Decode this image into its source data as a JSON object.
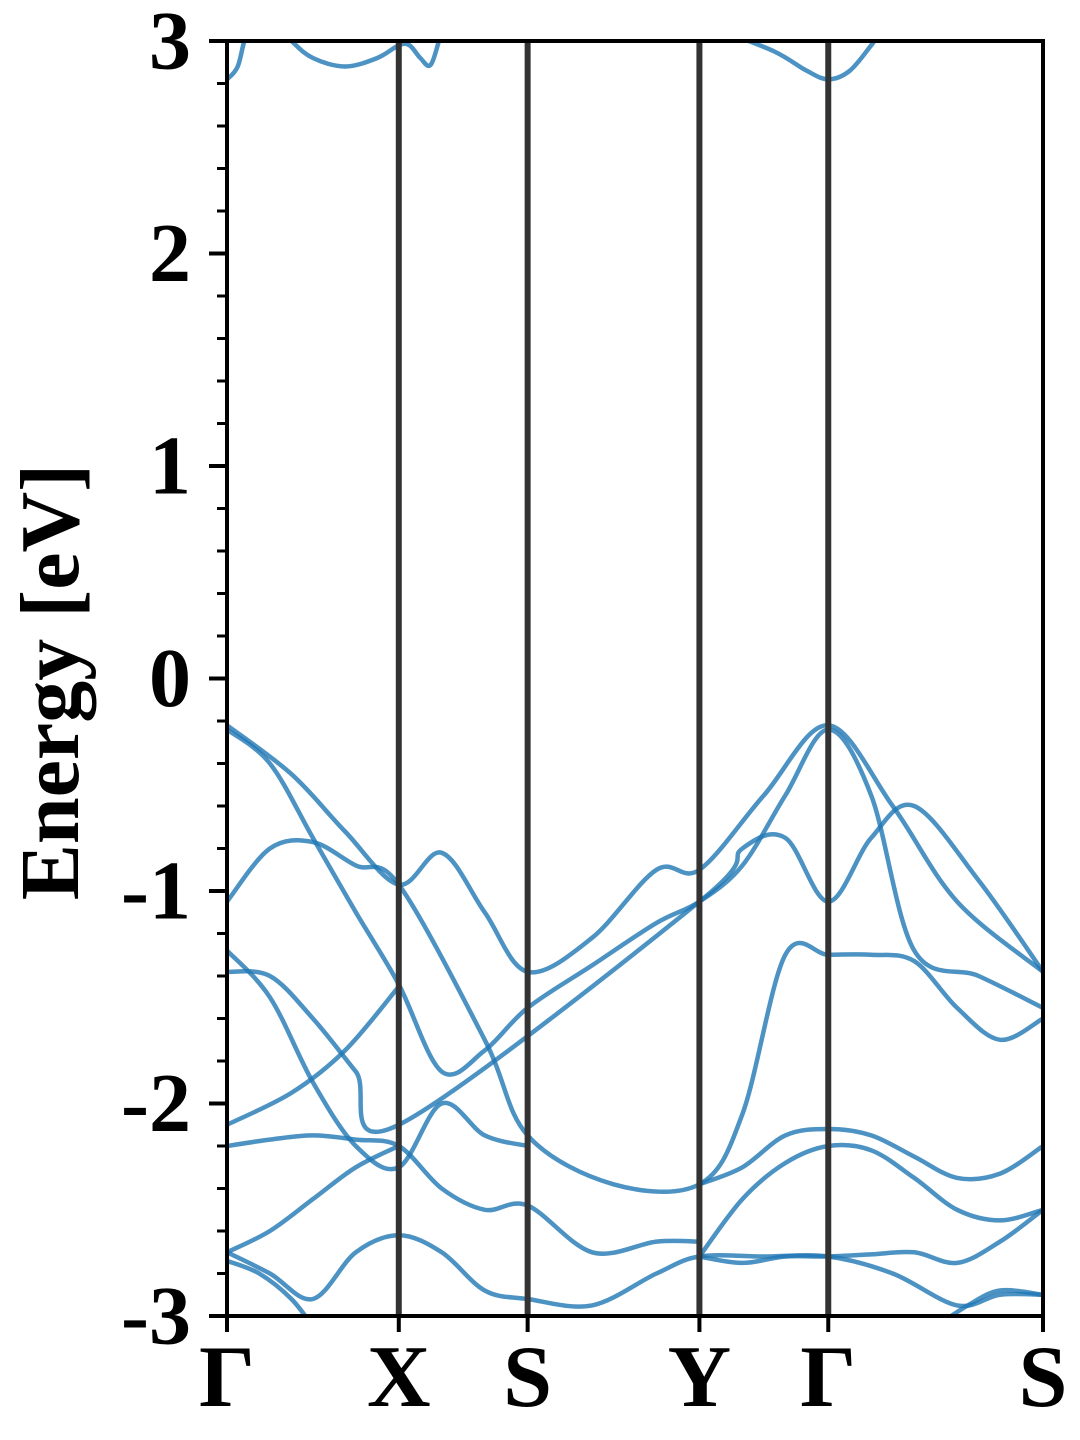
{
  "chart_data": {
    "type": "line",
    "ylabel": "Energy [eV]",
    "xlabel": "",
    "ylim": [
      -3,
      3
    ],
    "y_major_ticks": [
      -3,
      -2,
      -1,
      0,
      1,
      2,
      3
    ],
    "y_tick_labels": [
      "-3",
      "-2",
      "-1",
      "0",
      "1",
      "2",
      "3"
    ],
    "y_minor_step": 0.2,
    "high_symmetry_points": [
      {
        "label": "Γ",
        "x": 0.0
      },
      {
        "label": "X",
        "x": 0.8
      },
      {
        "label": "S",
        "x": 1.4
      },
      {
        "label": "Y",
        "x": 2.2
      },
      {
        "label": "Γ",
        "x": 2.8
      },
      {
        "label": "S",
        "x": 3.8
      }
    ],
    "xlim": [
      0.0,
      3.8
    ],
    "grid": false,
    "colors": {
      "band": "#1f77b4",
      "kline": "#333333",
      "axis": "#000000"
    },
    "series": [
      {
        "x": [
          0,
          0.3,
          0.55,
          0.8,
          1.0,
          1.2,
          1.4,
          1.7,
          2.0,
          2.2,
          2.5,
          2.8,
          3.1,
          3.4,
          3.8
        ],
        "values": [
          -0.22,
          -0.45,
          -0.72,
          -0.97,
          -0.82,
          -1.1,
          -1.38,
          -1.22,
          -0.9,
          -0.9,
          -0.55,
          -0.22,
          -0.6,
          -1.05,
          -1.38
        ]
      },
      {
        "x": [
          0,
          0.2,
          0.4,
          0.6,
          0.8,
          1.0,
          1.2,
          1.4,
          1.7,
          2.0,
          2.2,
          2.4,
          2.6,
          2.8,
          3.0,
          3.2,
          3.5,
          3.8
        ],
        "values": [
          -0.24,
          -0.4,
          -0.75,
          -1.1,
          -1.44,
          -1.85,
          -1.75,
          -1.55,
          -1.35,
          -1.15,
          -1.05,
          -0.88,
          -0.55,
          -0.24,
          -0.55,
          -1.28,
          -1.4,
          -1.55
        ]
      },
      {
        "x": [
          0,
          0.2,
          0.4,
          0.6,
          0.8,
          1.2,
          1.4,
          1.8,
          2.2,
          2.4,
          2.6,
          2.8,
          3.0,
          3.2,
          3.4,
          3.6,
          3.8
        ],
        "values": [
          -1.05,
          -0.8,
          -0.77,
          -0.88,
          -0.97,
          -1.7,
          -2.15,
          -2.38,
          -2.38,
          -2.05,
          -1.3,
          -1.3,
          -1.3,
          -1.33,
          -1.55,
          -1.7,
          -1.6
        ]
      },
      {
        "x": [
          0,
          0.2,
          0.4,
          0.6,
          0.8,
          2.2,
          2.4,
          2.6,
          2.8,
          3.0,
          3.2,
          3.5,
          3.8
        ],
        "values": [
          -1.38,
          -1.4,
          -1.6,
          -1.85,
          -2.1,
          -1.05,
          -0.8,
          -0.75,
          -1.05,
          -0.75,
          -0.6,
          -0.95,
          -1.38
        ]
      },
      {
        "x": [
          0,
          0.2,
          0.4,
          0.6,
          0.8,
          1.0,
          1.2,
          1.4
        ],
        "values": [
          -1.28,
          -1.5,
          -1.9,
          -2.2,
          -2.3,
          -2.0,
          -2.15,
          -2.2
        ]
      },
      {
        "x": [
          0,
          0.3,
          0.55,
          0.8
        ],
        "values": [
          -2.1,
          -1.95,
          -1.75,
          -1.45
        ]
      },
      {
        "x": [
          0,
          0.2,
          0.4,
          0.6,
          0.8,
          1.0,
          1.2,
          1.4,
          1.7,
          2.0,
          2.2
        ],
        "values": [
          -2.2,
          -2.17,
          -2.15,
          -2.17,
          -2.2,
          -2.4,
          -2.5,
          -2.48,
          -2.7,
          -2.65,
          -2.65
        ]
      },
      {
        "x": [
          2.2,
          2.4,
          2.6,
          2.8,
          3.0,
          3.2,
          3.4,
          3.6,
          3.8
        ],
        "values": [
          -2.38,
          -2.3,
          -2.15,
          -2.12,
          -2.15,
          -2.25,
          -2.35,
          -2.33,
          -2.2
        ]
      },
      {
        "x": [
          2.2,
          2.4,
          2.6,
          2.8,
          3.0,
          3.2,
          3.4,
          3.6,
          3.8
        ],
        "values": [
          -2.72,
          -2.45,
          -2.28,
          -2.2,
          -2.22,
          -2.35,
          -2.5,
          -2.55,
          -2.5
        ]
      },
      {
        "x": [
          0,
          0.2,
          0.4,
          0.6,
          0.8
        ],
        "values": [
          -2.7,
          -2.6,
          -2.45,
          -2.3,
          -2.2
        ]
      },
      {
        "x": [
          0,
          0.2,
          0.4,
          0.6,
          0.8,
          1.0,
          1.2,
          1.4,
          1.7,
          2.0,
          2.2,
          2.5,
          2.8,
          3.1,
          3.4,
          3.6,
          3.8
        ],
        "values": [
          -2.7,
          -2.8,
          -2.92,
          -2.7,
          -2.62,
          -2.7,
          -2.88,
          -2.92,
          -2.95,
          -2.8,
          -2.72,
          -2.72,
          -2.72,
          -2.8,
          -2.95,
          -2.9,
          -2.9
        ]
      },
      {
        "x": [
          2.2,
          2.4,
          2.6,
          2.8,
          3.0,
          3.2,
          3.4,
          3.6,
          3.8
        ],
        "values": [
          -2.72,
          -2.75,
          -2.72,
          -2.72,
          -2.71,
          -2.7,
          -2.75,
          -2.65,
          -2.5
        ]
      },
      {
        "x": [
          0,
          0.15,
          0.3,
          0.4
        ],
        "values": [
          -2.74,
          -2.8,
          -2.92,
          -3.05
        ]
      },
      {
        "x": [
          3.3,
          3.45,
          3.6,
          3.8
        ],
        "values": [
          -3.05,
          -2.95,
          -2.88,
          -2.9
        ]
      },
      {
        "x": [
          0,
          0.05,
          0.1,
          0.2,
          0.3,
          0.4,
          0.55,
          0.7,
          0.8,
          0.85,
          0.9,
          0.95,
          1.0
        ],
        "values": [
          2.82,
          2.88,
          3.05,
          3.1,
          3.0,
          2.92,
          2.88,
          2.92,
          2.98,
          2.98,
          2.92,
          2.89,
          3.05
        ]
      },
      {
        "x": [
          2.3,
          2.55,
          2.7,
          2.8,
          2.9,
          3.0,
          3.05
        ],
        "values": [
          3.05,
          2.95,
          2.86,
          2.82,
          2.86,
          2.98,
          3.05
        ]
      }
    ]
  }
}
